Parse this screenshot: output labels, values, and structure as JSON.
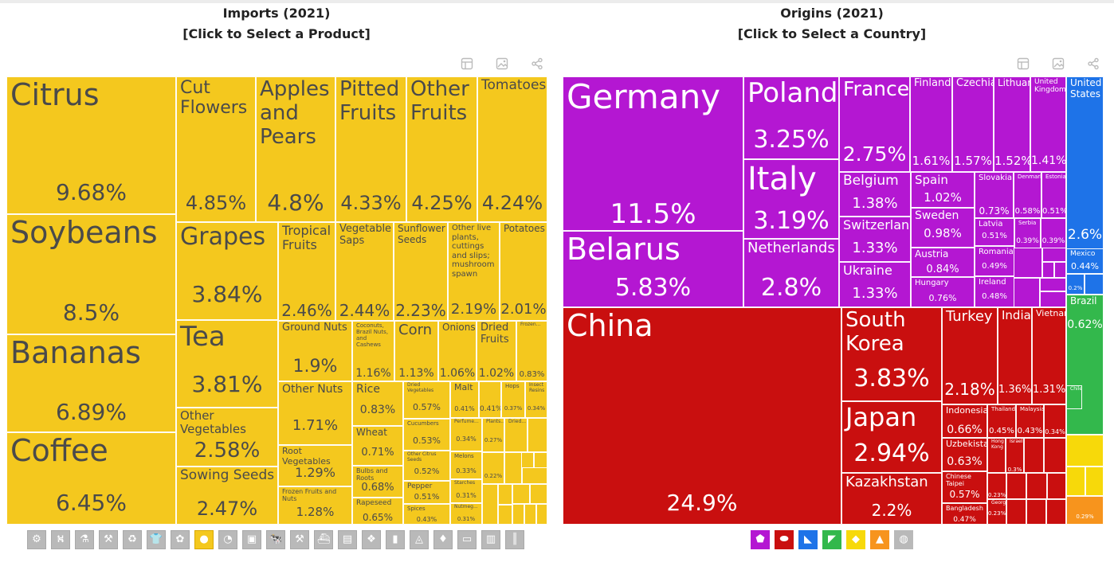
{
  "left_header": {
    "title": "Imports (2021)",
    "subtitle": "[Click to Select a Product]"
  },
  "right_header": {
    "title": "Origins (2021)",
    "subtitle": "[Click to Select a Country]"
  },
  "toolbar_icons": [
    "table-icon",
    "image-icon",
    "share-icon"
  ],
  "colors": {
    "products": "#f4c81e",
    "europe": "#b417d2",
    "asia": "#c90f0f",
    "north_america": "#1e73e8",
    "south_america": "#33b84c",
    "africa": "#f7d90a",
    "oceania": "#f7941d"
  },
  "chart_data": [
    {
      "type": "treemap",
      "title": "Imports (2021)",
      "items": [
        {
          "label": "Citrus",
          "value": "9.68%"
        },
        {
          "label": "Soybeans",
          "value": "8.5%"
        },
        {
          "label": "Bananas",
          "value": "6.89%"
        },
        {
          "label": "Coffee",
          "value": "6.45%"
        },
        {
          "label": "Cut Flowers",
          "value": "4.85%"
        },
        {
          "label": "Apples and Pears",
          "value": "4.8%"
        },
        {
          "label": "Pitted Fruits",
          "value": "4.33%"
        },
        {
          "label": "Other Fruits",
          "value": "4.25%"
        },
        {
          "label": "Tomatoes",
          "value": "4.24%"
        },
        {
          "label": "Grapes",
          "value": "3.84%"
        },
        {
          "label": "Tea",
          "value": "3.81%"
        },
        {
          "label": "Other Vegetables",
          "value": "2.58%"
        },
        {
          "label": "Sowing Seeds",
          "value": "2.47%"
        },
        {
          "label": "Tropical Fruits",
          "value": "2.46%"
        },
        {
          "label": "Vegetable Saps",
          "value": "2.44%"
        },
        {
          "label": "Sunflower Seeds",
          "value": "2.23%"
        },
        {
          "label": "Other live plants, cuttings and slips; mushroom spawn",
          "value": "2.19%"
        },
        {
          "label": "Potatoes",
          "value": "2.01%"
        },
        {
          "label": "Ground Nuts",
          "value": "1.9%"
        },
        {
          "label": "Coconuts, Brazil Nuts, and Cashews",
          "value": "1.16%"
        },
        {
          "label": "Corn",
          "value": "1.13%"
        },
        {
          "label": "Onions",
          "value": "1.06%"
        },
        {
          "label": "Dried Fruits",
          "value": "1.02%"
        },
        {
          "label": "Frozen...",
          "value": "0.83%"
        },
        {
          "label": "Other Nuts",
          "value": "1.71%"
        },
        {
          "label": "Root Vegetables",
          "value": "1.29%"
        },
        {
          "label": "Frozen Fruits and Nuts",
          "value": "1.28%"
        },
        {
          "label": "Rice",
          "value": "0.83%"
        },
        {
          "label": "Wheat",
          "value": "0.71%"
        },
        {
          "label": "Bulbs and Roots",
          "value": "0.68%"
        },
        {
          "label": "Rapeseed",
          "value": "0.65%"
        },
        {
          "label": "Dried Vegetables",
          "value": "0.57%"
        },
        {
          "label": "Cucumbers",
          "value": "0.53%"
        },
        {
          "label": "Other Citrus Seeds",
          "value": "0.52%"
        },
        {
          "label": "Pepper",
          "value": "0.51%"
        },
        {
          "label": "Spices",
          "value": "0.43%"
        },
        {
          "label": "Malt",
          "value": "0.41%"
        },
        {
          "label": "",
          "value": "0.41%"
        },
        {
          "label": "Hops",
          "value": "0.37%"
        },
        {
          "label": "Insect Resins",
          "value": "0.34%"
        },
        {
          "label": "Perfume...",
          "value": "0.34%"
        },
        {
          "label": "Plants...",
          "value": "0.27%"
        },
        {
          "label": "Dried...",
          "value": ""
        },
        {
          "label": "Melons",
          "value": "0.33%"
        },
        {
          "label": "Starches",
          "value": "0.31%"
        },
        {
          "label": "Nutmeg...",
          "value": "0.31%"
        },
        {
          "label": "",
          "value": "0.22%"
        }
      ]
    },
    {
      "type": "treemap",
      "title": "Origins (2021)",
      "items": [
        {
          "label": "Germany",
          "value": "11.5%",
          "region": "europe"
        },
        {
          "label": "Belarus",
          "value": "5.83%",
          "region": "europe"
        },
        {
          "label": "Poland",
          "value": "3.25%",
          "region": "europe"
        },
        {
          "label": "Italy",
          "value": "3.19%",
          "region": "europe"
        },
        {
          "label": "Netherlands",
          "value": "2.8%",
          "region": "europe"
        },
        {
          "label": "France",
          "value": "2.75%",
          "region": "europe"
        },
        {
          "label": "Finland",
          "value": "1.61%",
          "region": "europe"
        },
        {
          "label": "Czechia",
          "value": "1.57%",
          "region": "europe"
        },
        {
          "label": "Lithuania",
          "value": "1.52%",
          "region": "europe"
        },
        {
          "label": "United Kingdom",
          "value": "1.41%",
          "region": "europe"
        },
        {
          "label": "Belgium",
          "value": "1.38%",
          "region": "europe"
        },
        {
          "label": "Switzerland",
          "value": "1.33%",
          "region": "europe"
        },
        {
          "label": "Ukraine",
          "value": "1.33%",
          "region": "europe"
        },
        {
          "label": "Spain",
          "value": "1.02%",
          "region": "europe"
        },
        {
          "label": "Sweden",
          "value": "0.98%",
          "region": "europe"
        },
        {
          "label": "Austria",
          "value": "0.84%",
          "region": "europe"
        },
        {
          "label": "Hungary",
          "value": "0.76%",
          "region": "europe"
        },
        {
          "label": "Slovakia",
          "value": "0.73%",
          "region": "europe"
        },
        {
          "label": "Denmark",
          "value": "0.58%",
          "region": "europe"
        },
        {
          "label": "Estonia",
          "value": "0.51%",
          "region": "europe"
        },
        {
          "label": "Latvia",
          "value": "0.51%",
          "region": "europe"
        },
        {
          "label": "Serbia",
          "value": "0.39%",
          "region": "europe"
        },
        {
          "label": "",
          "value": "0.39%",
          "region": "europe"
        },
        {
          "label": "Romania",
          "value": "0.49%",
          "region": "europe"
        },
        {
          "label": "Ireland",
          "value": "0.48%",
          "region": "europe"
        },
        {
          "label": "China",
          "value": "24.9%",
          "region": "asia"
        },
        {
          "label": "South Korea",
          "value": "3.83%",
          "region": "asia"
        },
        {
          "label": "Japan",
          "value": "2.94%",
          "region": "asia"
        },
        {
          "label": "Kazakhstan",
          "value": "2.2%",
          "region": "asia"
        },
        {
          "label": "Turkey",
          "value": "2.18%",
          "region": "asia"
        },
        {
          "label": "India",
          "value": "1.36%",
          "region": "asia"
        },
        {
          "label": "Vietnam",
          "value": "1.31%",
          "region": "asia"
        },
        {
          "label": "Indonesia",
          "value": "0.66%",
          "region": "asia"
        },
        {
          "label": "Uzbekistan",
          "value": "0.63%",
          "region": "asia"
        },
        {
          "label": "Chinese Taipei",
          "value": "0.57%",
          "region": "asia"
        },
        {
          "label": "Bangladesh",
          "value": "0.47%",
          "region": "asia"
        },
        {
          "label": "Thailand",
          "value": "0.45%",
          "region": "asia"
        },
        {
          "label": "Malaysia",
          "value": "0.43%",
          "region": "asia"
        },
        {
          "label": "",
          "value": "0.34%",
          "region": "asia"
        },
        {
          "label": "Hong Kong",
          "value": "",
          "region": "asia"
        },
        {
          "label": "Israel",
          "value": "0.3%",
          "region": "asia"
        },
        {
          "label": "",
          "value": "0.23%",
          "region": "asia"
        },
        {
          "label": "Georgia",
          "value": "0.23%",
          "region": "asia"
        },
        {
          "label": "United States",
          "value": "2.6%",
          "region": "north_america"
        },
        {
          "label": "Mexico",
          "value": "0.44%",
          "region": "north_america"
        },
        {
          "label": "",
          "value": "0.2%",
          "region": "north_america"
        },
        {
          "label": "Brazil",
          "value": "0.62%",
          "region": "south_america"
        },
        {
          "label": "Chile",
          "value": "",
          "region": "south_america"
        },
        {
          "label": "",
          "value": "0.29%",
          "region": "oceania"
        }
      ]
    }
  ],
  "product_category_icons": [
    "gear-icon",
    "road-icon",
    "flask-icon",
    "anvil-icon",
    "recycle-icon",
    "shirt-icon",
    "wheat-icon",
    "fruit-icon",
    "gauge-icon",
    "box-icon",
    "animal-icon",
    "hammer-icon",
    "ship-icon",
    "document-icon",
    "shell-icon",
    "bottle-icon",
    "hide-icon",
    "gem-icon",
    "ticket-icon",
    "easel-icon",
    "candle-icon"
  ],
  "region_icons": [
    "europe-icon",
    "asia-icon",
    "north-america-icon",
    "south-america-icon",
    "africa-icon",
    "oceania-icon",
    "antarctica-icon"
  ]
}
